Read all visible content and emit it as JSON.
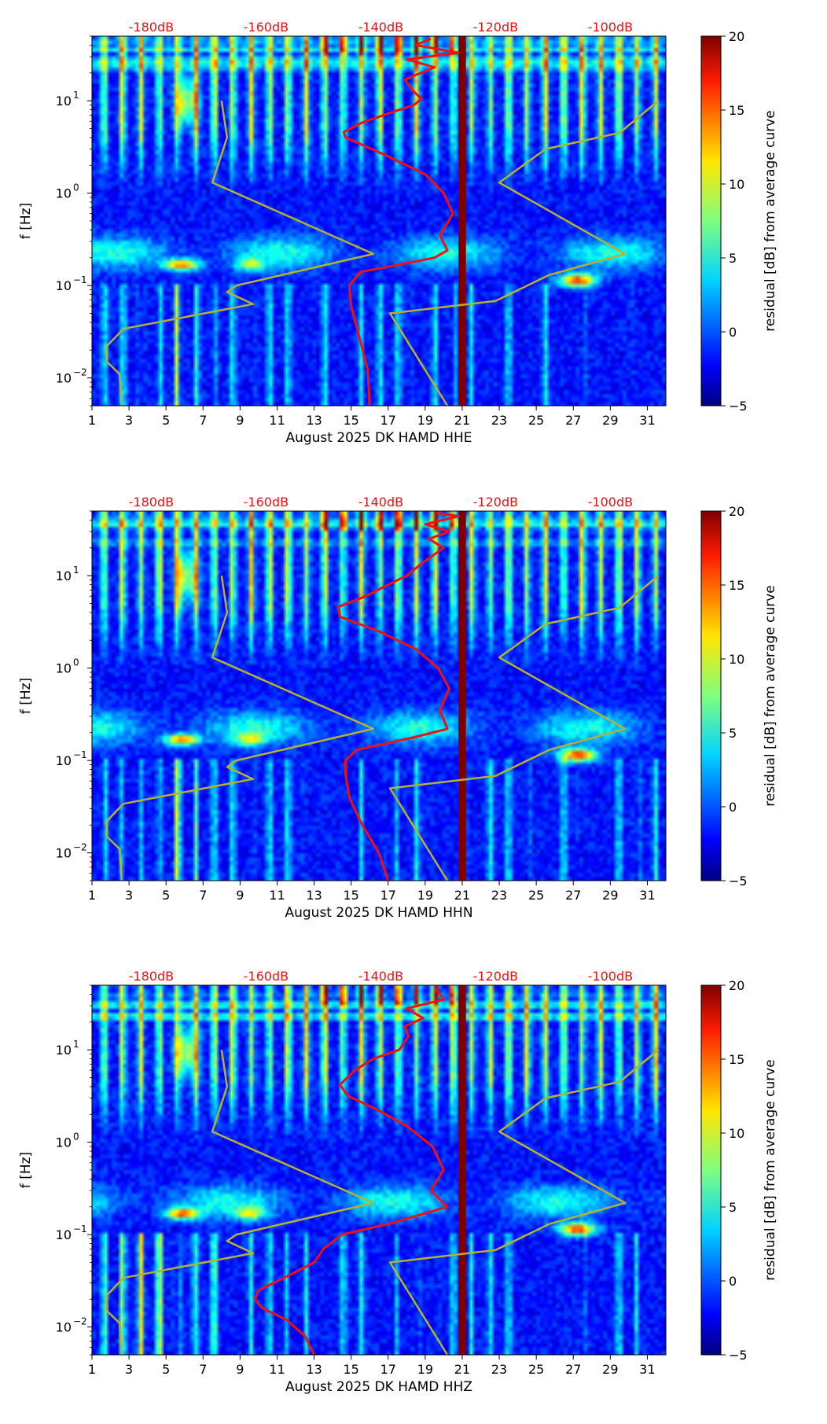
{
  "colors": {
    "min": "#00007f",
    "mid": "#7fff7f",
    "max": "#7f0000",
    "noise_model_line": "#b8b030",
    "psd_line": "#ee1111",
    "db_scale_labels": "#ee1111",
    "gap_bar": "#7f0000"
  },
  "colorbar": {
    "label": "residual [dB] from average curve",
    "range": [
      -5,
      20
    ],
    "ticks": [
      "20",
      "15",
      "10",
      "5",
      "0",
      "−5"
    ],
    "tick_values": [
      20,
      15,
      10,
      5,
      0,
      -5
    ]
  },
  "chart_data": [
    {
      "type": "heatmap",
      "title": "",
      "xlabel": "August 2025 DK HAMD  HHE",
      "ylabel": "f [Hz]",
      "x_ticks": [
        "1",
        "3",
        "5",
        "7",
        "9",
        "11",
        "13",
        "15",
        "17",
        "19",
        "21",
        "23",
        "25",
        "27",
        "29",
        "31"
      ],
      "x_tick_values": [
        1,
        3,
        5,
        7,
        9,
        11,
        13,
        15,
        17,
        19,
        21,
        23,
        25,
        27,
        29,
        31
      ],
      "xlim": [
        1,
        32
      ],
      "y_scale": "log",
      "ylim": [
        0.005,
        50
      ],
      "y_ticks": [
        {
          "base": "10",
          "exp": "1",
          "value": 10
        },
        {
          "base": "10",
          "exp": "0",
          "value": 1
        },
        {
          "base": "10",
          "exp": "−1",
          "value": 0.1
        },
        {
          "base": "10",
          "exp": "−2",
          "value": 0.01
        }
      ],
      "top_scale_labels": [
        "-180dB",
        "-160dB",
        "-140dB",
        "-120dB",
        "-100dB"
      ],
      "top_scale_days": [
        4.2,
        10.4,
        16.6,
        22.8,
        29.0
      ],
      "gap_days": [
        20.8,
        21.2
      ],
      "noise_model": [
        [
          8,
          10
        ],
        [
          8.3,
          4
        ],
        [
          7.5,
          1.3
        ],
        [
          16.2,
          0.22
        ],
        [
          8.8,
          0.1
        ],
        [
          8.3,
          0.085
        ],
        [
          9.7,
          0.063
        ],
        [
          2.7,
          0.034
        ],
        [
          1.8,
          0.022
        ],
        [
          1.8,
          0.015
        ],
        [
          2.5,
          0.011
        ],
        [
          2.6,
          0.005
        ]
      ],
      "noise_model_high": [
        [
          20.2,
          0.005
        ],
        [
          17.1,
          0.05
        ],
        [
          22.8,
          0.068
        ],
        [
          25.7,
          0.13
        ],
        [
          29.8,
          0.22
        ],
        [
          23,
          1.3
        ],
        [
          25.5,
          3
        ],
        [
          29.5,
          4.5
        ],
        [
          31.6,
          10
        ]
      ],
      "psd_curve": [
        [
          16.0,
          0.005
        ],
        [
          15.9,
          0.012
        ],
        [
          15.4,
          0.03
        ],
        [
          15.0,
          0.06
        ],
        [
          14.9,
          0.1
        ],
        [
          15.5,
          0.14
        ],
        [
          19.5,
          0.2
        ],
        [
          20.2,
          0.24
        ],
        [
          19.8,
          0.35
        ],
        [
          20.5,
          0.6
        ],
        [
          20.0,
          1.0
        ],
        [
          19.0,
          1.6
        ],
        [
          17.0,
          2.5
        ],
        [
          14.7,
          4.0
        ],
        [
          14.6,
          4.6
        ],
        [
          15.6,
          5.8
        ],
        [
          17.2,
          7.5
        ],
        [
          18.4,
          9.0
        ],
        [
          18.8,
          10.5
        ],
        [
          18.3,
          13
        ],
        [
          17.9,
          17
        ],
        [
          19.5,
          23
        ],
        [
          18.0,
          28
        ],
        [
          20.8,
          33
        ],
        [
          18.5,
          40
        ],
        [
          19.3,
          47
        ]
      ]
    },
    {
      "type": "heatmap",
      "title": "",
      "xlabel": "August 2025 DK HAMD  HHN",
      "ylabel": "f [Hz]",
      "x_ticks": [
        "1",
        "3",
        "5",
        "7",
        "9",
        "11",
        "13",
        "15",
        "17",
        "19",
        "21",
        "23",
        "25",
        "27",
        "29",
        "31"
      ],
      "x_tick_values": [
        1,
        3,
        5,
        7,
        9,
        11,
        13,
        15,
        17,
        19,
        21,
        23,
        25,
        27,
        29,
        31
      ],
      "xlim": [
        1,
        32
      ],
      "y_scale": "log",
      "ylim": [
        0.005,
        50
      ],
      "y_ticks": [
        {
          "base": "10",
          "exp": "1",
          "value": 10
        },
        {
          "base": "10",
          "exp": "0",
          "value": 1
        },
        {
          "base": "10",
          "exp": "−1",
          "value": 0.1
        },
        {
          "base": "10",
          "exp": "−2",
          "value": 0.01
        }
      ],
      "top_scale_labels": [
        "-180dB",
        "-160dB",
        "-140dB",
        "-120dB",
        "-100dB"
      ],
      "top_scale_days": [
        4.2,
        10.4,
        16.6,
        22.8,
        29.0
      ],
      "gap_days": [
        20.8,
        21.2
      ],
      "noise_model": [
        [
          8,
          10
        ],
        [
          8.3,
          4
        ],
        [
          7.5,
          1.3
        ],
        [
          16.2,
          0.22
        ],
        [
          8.8,
          0.1
        ],
        [
          8.3,
          0.085
        ],
        [
          9.7,
          0.063
        ],
        [
          2.7,
          0.034
        ],
        [
          1.8,
          0.022
        ],
        [
          1.8,
          0.015
        ],
        [
          2.5,
          0.011
        ],
        [
          2.6,
          0.005
        ]
      ],
      "noise_model_high": [
        [
          20.2,
          0.005
        ],
        [
          17.1,
          0.05
        ],
        [
          22.8,
          0.068
        ],
        [
          25.7,
          0.13
        ],
        [
          29.8,
          0.22
        ],
        [
          23,
          1.3
        ],
        [
          25.5,
          3
        ],
        [
          29.5,
          4.5
        ],
        [
          31.6,
          10
        ]
      ],
      "psd_curve": [
        [
          17.0,
          0.005
        ],
        [
          16.5,
          0.01
        ],
        [
          15.6,
          0.02
        ],
        [
          14.9,
          0.04
        ],
        [
          14.7,
          0.07
        ],
        [
          14.7,
          0.1
        ],
        [
          15.3,
          0.13
        ],
        [
          18.5,
          0.18
        ],
        [
          20.2,
          0.22
        ],
        [
          19.8,
          0.35
        ],
        [
          20.3,
          0.6
        ],
        [
          19.7,
          1.0
        ],
        [
          18.5,
          1.6
        ],
        [
          16.5,
          2.5
        ],
        [
          14.4,
          3.6
        ],
        [
          14.3,
          4.6
        ],
        [
          15.8,
          6.0
        ],
        [
          17.0,
          8.0
        ],
        [
          18.0,
          10
        ],
        [
          18.9,
          14
        ],
        [
          20.0,
          20
        ],
        [
          19.2,
          25
        ],
        [
          20.3,
          30
        ],
        [
          19.0,
          36
        ],
        [
          20.8,
          44
        ],
        [
          19.6,
          48
        ]
      ]
    },
    {
      "type": "heatmap",
      "title": "",
      "xlabel": "August 2025 DK HAMD  HHZ",
      "ylabel": "f [Hz]",
      "x_ticks": [
        "1",
        "3",
        "5",
        "7",
        "9",
        "11",
        "13",
        "15",
        "17",
        "19",
        "21",
        "23",
        "25",
        "27",
        "29",
        "31"
      ],
      "x_tick_values": [
        1,
        3,
        5,
        7,
        9,
        11,
        13,
        15,
        17,
        19,
        21,
        23,
        25,
        27,
        29,
        31
      ],
      "xlim": [
        1,
        32
      ],
      "y_scale": "log",
      "ylim": [
        0.005,
        50
      ],
      "y_ticks": [
        {
          "base": "10",
          "exp": "1",
          "value": 10
        },
        {
          "base": "10",
          "exp": "0",
          "value": 1
        },
        {
          "base": "10",
          "exp": "−1",
          "value": 0.1
        },
        {
          "base": "10",
          "exp": "−2",
          "value": 0.01
        }
      ],
      "top_scale_labels": [
        "-180dB",
        "-160dB",
        "-140dB",
        "-120dB",
        "-100dB"
      ],
      "top_scale_days": [
        4.2,
        10.4,
        16.6,
        22.8,
        29.0
      ],
      "gap_days": [
        20.8,
        21.2
      ],
      "noise_model": [
        [
          8,
          10
        ],
        [
          8.3,
          4
        ],
        [
          7.5,
          1.3
        ],
        [
          16.2,
          0.22
        ],
        [
          8.8,
          0.1
        ],
        [
          8.3,
          0.085
        ],
        [
          9.7,
          0.063
        ],
        [
          2.7,
          0.034
        ],
        [
          1.8,
          0.022
        ],
        [
          1.8,
          0.015
        ],
        [
          2.5,
          0.011
        ],
        [
          2.6,
          0.005
        ]
      ],
      "noise_model_high": [
        [
          20.2,
          0.005
        ],
        [
          17.1,
          0.05
        ],
        [
          22.8,
          0.068
        ],
        [
          25.7,
          0.13
        ],
        [
          29.8,
          0.22
        ],
        [
          23,
          1.3
        ],
        [
          25.5,
          3
        ],
        [
          29.5,
          4.5
        ],
        [
          31.6,
          10
        ]
      ],
      "psd_curve": [
        [
          13.0,
          0.005
        ],
        [
          12.5,
          0.008
        ],
        [
          11.5,
          0.012
        ],
        [
          10.2,
          0.016
        ],
        [
          9.8,
          0.02
        ],
        [
          10.0,
          0.025
        ],
        [
          11.5,
          0.035
        ],
        [
          13.0,
          0.05
        ],
        [
          13.5,
          0.07
        ],
        [
          14.5,
          0.1
        ],
        [
          17.0,
          0.13
        ],
        [
          20.2,
          0.2
        ],
        [
          19.3,
          0.3
        ],
        [
          20.0,
          0.5
        ],
        [
          19.4,
          0.9
        ],
        [
          18.0,
          1.5
        ],
        [
          16.5,
          2.2
        ],
        [
          14.8,
          3.2
        ],
        [
          14.4,
          4.2
        ],
        [
          15.2,
          6.0
        ],
        [
          16.2,
          8.0
        ],
        [
          17.6,
          10
        ],
        [
          18.1,
          14
        ],
        [
          17.9,
          18
        ],
        [
          18.9,
          22
        ],
        [
          18.0,
          28
        ],
        [
          20.0,
          35
        ],
        [
          19.6,
          46
        ]
      ]
    }
  ]
}
